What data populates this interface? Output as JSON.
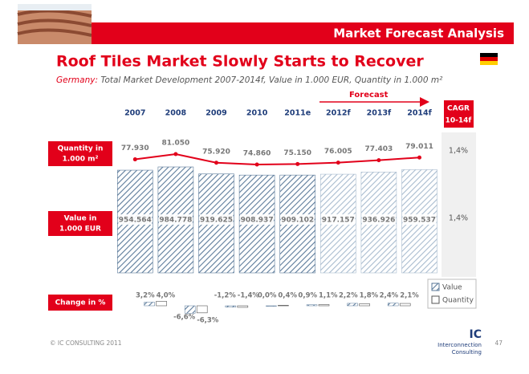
{
  "header": {
    "title": "Market Forecast Analysis"
  },
  "chart_data": {
    "type": "bar",
    "title": "Roof Tiles Market Slowly Starts to Recover",
    "subtitle_country": "Germany:",
    "subtitle": "Total Market Development 2007-2014f, Value in 1.000 EUR, Quantity in 1.000 m²",
    "forecast_label": "Forecast",
    "categories": [
      "2007",
      "2008",
      "2009",
      "2010",
      "2011e",
      "2012f",
      "2013f",
      "2014f"
    ],
    "series": [
      {
        "name": "Quantity",
        "type": "line",
        "color": "#e2001a",
        "row_label": [
          "Quantity in",
          "1.000 m²"
        ],
        "values": [
          77930,
          81050,
          75920,
          74860,
          75150,
          76005,
          77403,
          79011
        ],
        "value_labels": [
          "77.930",
          "81.050",
          "75.920",
          "74.860",
          "75.150",
          "76.005",
          "77.403",
          "79.011"
        ]
      },
      {
        "name": "Value",
        "type": "bar",
        "color": "#5b7a9a",
        "row_label": [
          "Value in",
          "1.000 EUR"
        ],
        "values": [
          954564,
          984778,
          919625,
          908937,
          909102,
          917157,
          936926,
          959537
        ],
        "value_labels": [
          "954.564",
          "984.778",
          "919.625",
          "908.937",
          "909.102",
          "917.157",
          "936.926",
          "959.537"
        ]
      }
    ],
    "cagr": {
      "title": "CAGR",
      "period": "10-14f",
      "values": [
        "1,4%",
        "1,4%"
      ]
    },
    "change": {
      "label": "Change in %",
      "value": [
        3.2,
        -6.6,
        -1.2,
        0.0,
        0.9,
        2.2,
        2.4
      ],
      "value_labels": [
        "3,2%",
        "-6,6%",
        "-1,2%",
        "0,0%",
        "0,9%",
        "2,2%",
        "2,4%"
      ],
      "quantity": [
        4.0,
        -6.3,
        -1.4,
        0.4,
        1.1,
        1.8,
        2.1
      ],
      "quantity_labels": [
        "4,0%",
        "-6,3%",
        "-1,4%",
        "0,4%",
        "1,1%",
        "1,8%",
        "2,1%"
      ]
    }
  },
  "footer": {
    "copyright": "© IC CONSULTING 2011",
    "logo": "IC",
    "logo_line1": "Interconnection",
    "logo_line2": "Consulting",
    "page": "47"
  }
}
